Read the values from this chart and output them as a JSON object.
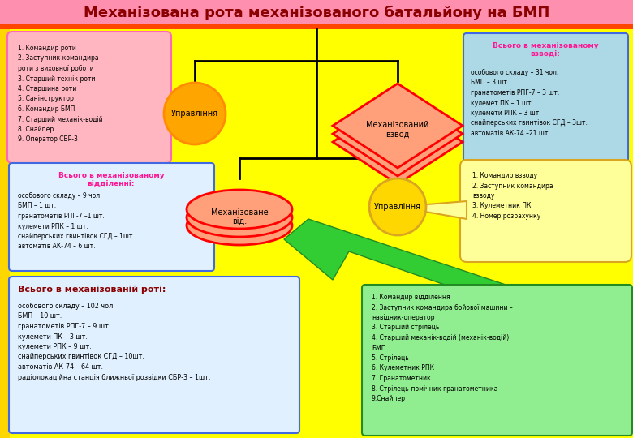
{
  "title": "Механізована рота механізованого батальйону на БМП",
  "title_bg": "#FF8FAF",
  "title_color": "#8B0000",
  "bg_color": "#FFFF00",
  "top_strip_color": "#FF4500",
  "upravlinnia_top_label": "Управління",
  "upravlinnia_circle_color": "#FFA500",
  "upravlinnia_circle_edge": "#FF8C00",
  "mech_vzvod_label": "Механізований\nвзвод",
  "mech_vzvod_color": "#FFA07A",
  "mech_vzvod_edge": "#FF0000",
  "mech_vid_label": "Механізоване\nвід.",
  "mech_vid_color": "#FFA07A",
  "mech_vid_edge": "#FF0000",
  "upravlinnia_bot_label": "Управління",
  "upravlinnia_bot_color": "#FFD700",
  "upravlinnia_bot_edge": "#DAA520",
  "top_left_box_color": "#FFB6C1",
  "top_left_box_edge": "#FF69B4",
  "top_left_box_text": "1. Командир роти\n2. Заступник командира\nроти з виховної роботи\n3. Старший технік роти\n4. Старшина роти\n5. Санінструктор\n6. Командир БМП\n7. Старший механік-водій\n8. Снайпер\n9. Оператор СБР-3",
  "top_right_box_color": "#ADD8E6",
  "top_right_box_edge": "#4169E1",
  "top_right_title": "Всього в механізованому\nвзводі:",
  "top_right_title_color": "#FF1493",
  "top_right_text": "особового складу – 31 чол.\nБМП – 3 шт.\nгранатометів РПГ-7 – 3 шт.\nкулемет ПК – 1 шт.\nкулемети РПК – 3 шт.\nснайперських гвинтівок СГД – 3шт.\nавтоматів АК-74 –21 шт.",
  "mid_left_box_color": "#E0F0FF",
  "mid_left_box_edge": "#4169E1",
  "mid_left_title": "Всього в механізованому\nвідділенні:",
  "mid_left_title_color": "#FF1493",
  "mid_left_text": "особового складу – 9 чол.\nБМП – 1 шт.\nгранатометів РПГ-7 –1 шт.\nкулемети РПК – 1 шт.\nснайперських гвинтівок СГД – 1шт.\nавтоматів АК-74 – 6 шт.",
  "mid_right_box_color": "#FFFF99",
  "mid_right_box_edge": "#DAA520",
  "mid_right_text": "1. Командир взводу\n2. Заступник командира\nвзводу\n3. Кулеметник ПК\n4. Номер розрахунку",
  "bot_left_box_color": "#E0F0FF",
  "bot_left_box_edge": "#4169E1",
  "bot_left_title": "Всього в механізованій роті:",
  "bot_left_title_color": "#8B0000",
  "bot_left_text": "особового складу – 102 чол.\nБМП – 10 шт.\nгранатометів РПГ-7 – 9 шт.\nкулемети ПК – 3 шт.\nкулемети РПК – 9 шт.\nснайперських гвинтівок СГД – 10шт.\nавтоматів АК-74 – 64 шт.\nрадіолокаційна станція ближньої розвідки СБР-3 – 1шт.",
  "bot_right_box_color": "#90EE90",
  "bot_right_box_edge": "#228B22",
  "bot_right_text": "1. Командир відділення\n2. Заступник командира бойової машини –\nнавідник-оператор\n3. Старший стрілець\n4. Старший механік-водій (механік-водій)\nБМП\n5. Стрілець\n6. Кулеметник РПК\n7. Гранатометник\n8. Стрілець-помічник гранатометника\n9.Снайпер",
  "green_arrow_color": "#32CD32",
  "green_arrow_edge": "#228B22"
}
